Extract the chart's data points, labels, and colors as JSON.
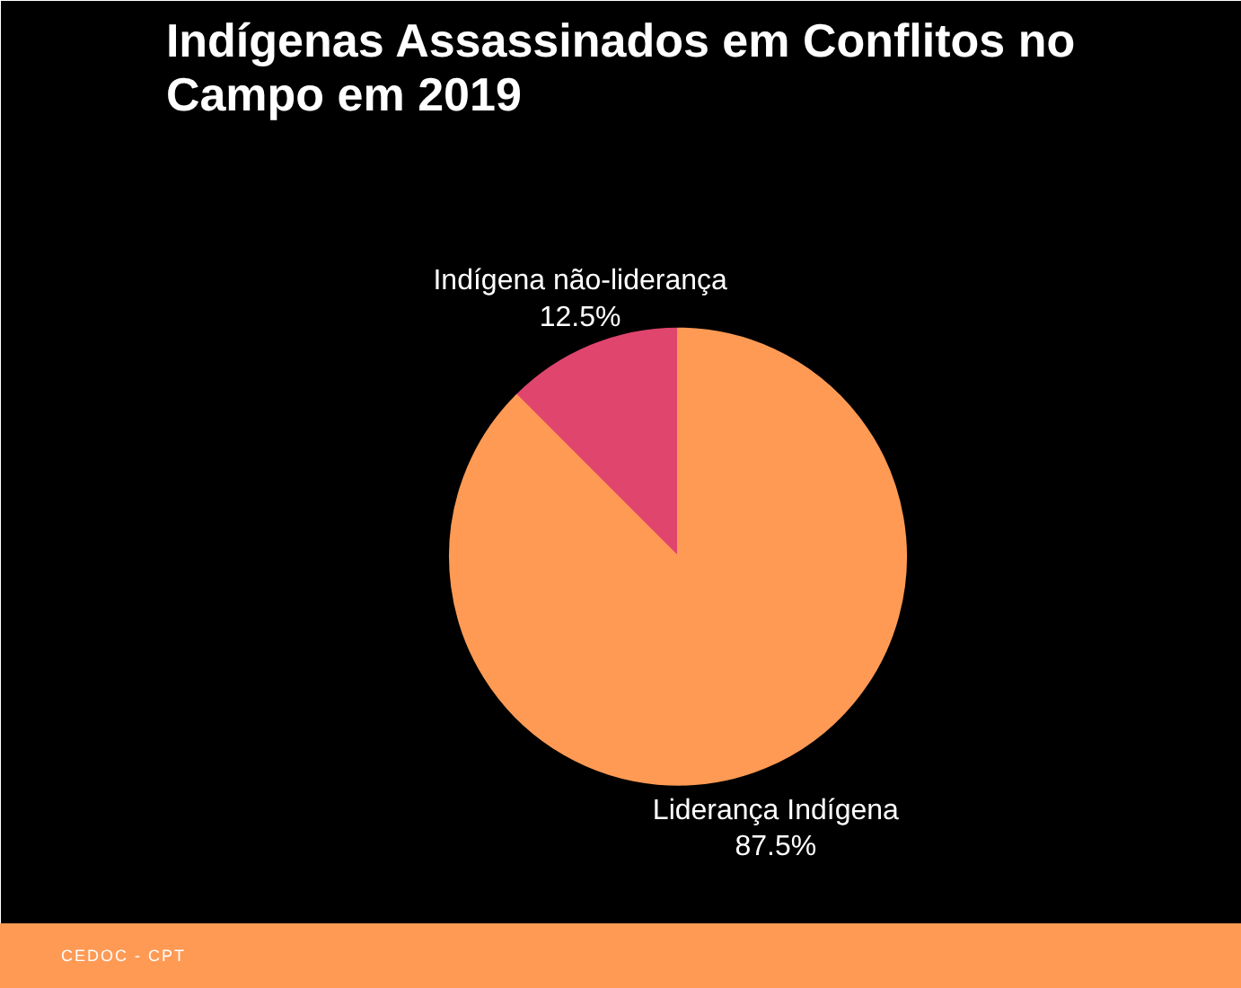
{
  "chart_data": {
    "type": "pie",
    "title": "Indígenas Assassinados em Conflitos no Campo em 2019",
    "categories": [
      "Indígena não-liderança",
      "Liderança Indígena"
    ],
    "values": [
      12.5,
      87.5
    ],
    "colors": [
      "#e0456e",
      "#ff9a55"
    ],
    "value_labels": [
      "12.5%",
      "87.5%"
    ],
    "annotations": [
      "CEDOC - CPT"
    ]
  }
}
